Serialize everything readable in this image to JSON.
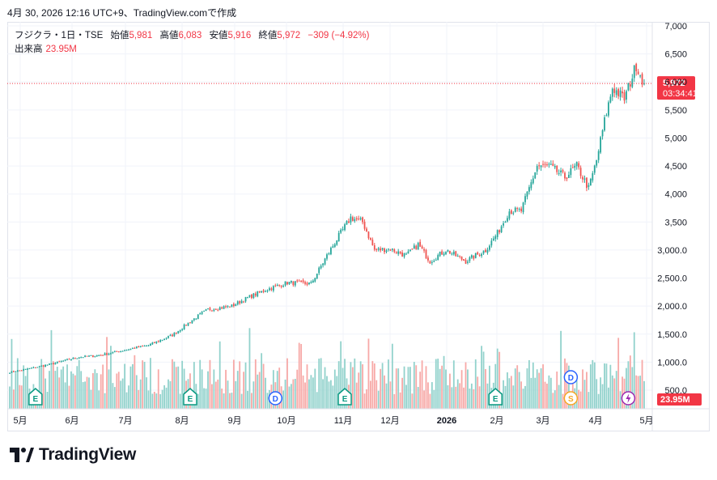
{
  "snapshot_caption": "4月 30, 2026 12:16 UTC+9、TradingView.comで作成",
  "legend": {
    "symbol": "フジクラ・1日・TSE",
    "open_label": "始値",
    "open": "5,981",
    "high_label": "高値",
    "high": "6,083",
    "low_label": "安値",
    "low": "5,916",
    "close_label": "終値",
    "close": "5,972",
    "change": "−309 (−4.92%)"
  },
  "volume_legend": {
    "label": "出来高",
    "value": "23.95M"
  },
  "price_tag": {
    "value": "5,972",
    "countdown": "03:34:41"
  },
  "volume_tag": "23.95M",
  "brand": "TradingView",
  "colors": {
    "up": "#26a69a",
    "down": "#ef5350",
    "up_vol": "#92d2cc",
    "down_vol": "#f7a9a7",
    "last": "#f23645"
  },
  "chart_data": {
    "type": "candlestick",
    "y_axis": {
      "min": 500,
      "max": 7000,
      "position": "right",
      "ticks": [
        7000,
        6500,
        6000,
        5500,
        5000,
        4500,
        4000,
        3500,
        3000,
        2500,
        2000,
        1500,
        1000,
        500
      ],
      "tick_labels": [
        "7,000",
        "6,500",
        "6,000",
        "5,500",
        "5,000",
        "4,500",
        "4,000",
        "3,500",
        "3,000.0",
        "2,500.0",
        "2,000.0",
        "1,500.0",
        "1,000.0",
        "500.0"
      ]
    },
    "x_axis": {
      "labels": [
        "5月",
        "6月",
        "7月",
        "8月",
        "9月",
        "10月",
        "11月",
        "12月",
        "2026",
        "2月",
        "3月",
        "4月",
        "5月"
      ]
    },
    "grid": true,
    "last_close": 5972,
    "volume_axis_max": 23.95,
    "price_path": [
      [
        0,
        820
      ],
      [
        8,
        870
      ],
      [
        20,
        960
      ],
      [
        28,
        1030
      ],
      [
        35,
        1090
      ],
      [
        45,
        1120
      ],
      [
        60,
        1230
      ],
      [
        70,
        1300
      ],
      [
        82,
        1480
      ],
      [
        92,
        1750
      ],
      [
        100,
        1940
      ],
      [
        112,
        2000
      ],
      [
        120,
        2150
      ],
      [
        130,
        2300
      ],
      [
        140,
        2420
      ],
      [
        152,
        2400
      ],
      [
        160,
        2900
      ],
      [
        166,
        3250
      ],
      [
        172,
        3580
      ],
      [
        178,
        3500
      ],
      [
        184,
        3000
      ],
      [
        192,
        3020
      ],
      [
        200,
        2900
      ],
      [
        206,
        3100
      ],
      [
        212,
        2800
      ],
      [
        220,
        3000
      ],
      [
        230,
        2800
      ],
      [
        240,
        3000
      ],
      [
        246,
        3300
      ],
      [
        252,
        3700
      ],
      [
        258,
        3700
      ],
      [
        266,
        4500
      ],
      [
        272,
        4500
      ],
      [
        280,
        4300
      ],
      [
        286,
        4500
      ],
      [
        292,
        4100
      ],
      [
        296,
        4600
      ],
      [
        300,
        5300
      ],
      [
        304,
        5900
      ],
      [
        310,
        5700
      ],
      [
        316,
        6300
      ],
      [
        320,
        5972
      ]
    ],
    "events": [
      {
        "type": "E",
        "bar": 13
      },
      {
        "type": "E",
        "bar": 91
      },
      {
        "type": "D",
        "bar": 134
      },
      {
        "type": "E",
        "bar": 169
      },
      {
        "type": "E",
        "bar": 245
      },
      {
        "type": "D",
        "bar": 283
      },
      {
        "type": "S",
        "bar": 283
      },
      {
        "type": "lightning",
        "bar": 312
      }
    ]
  }
}
